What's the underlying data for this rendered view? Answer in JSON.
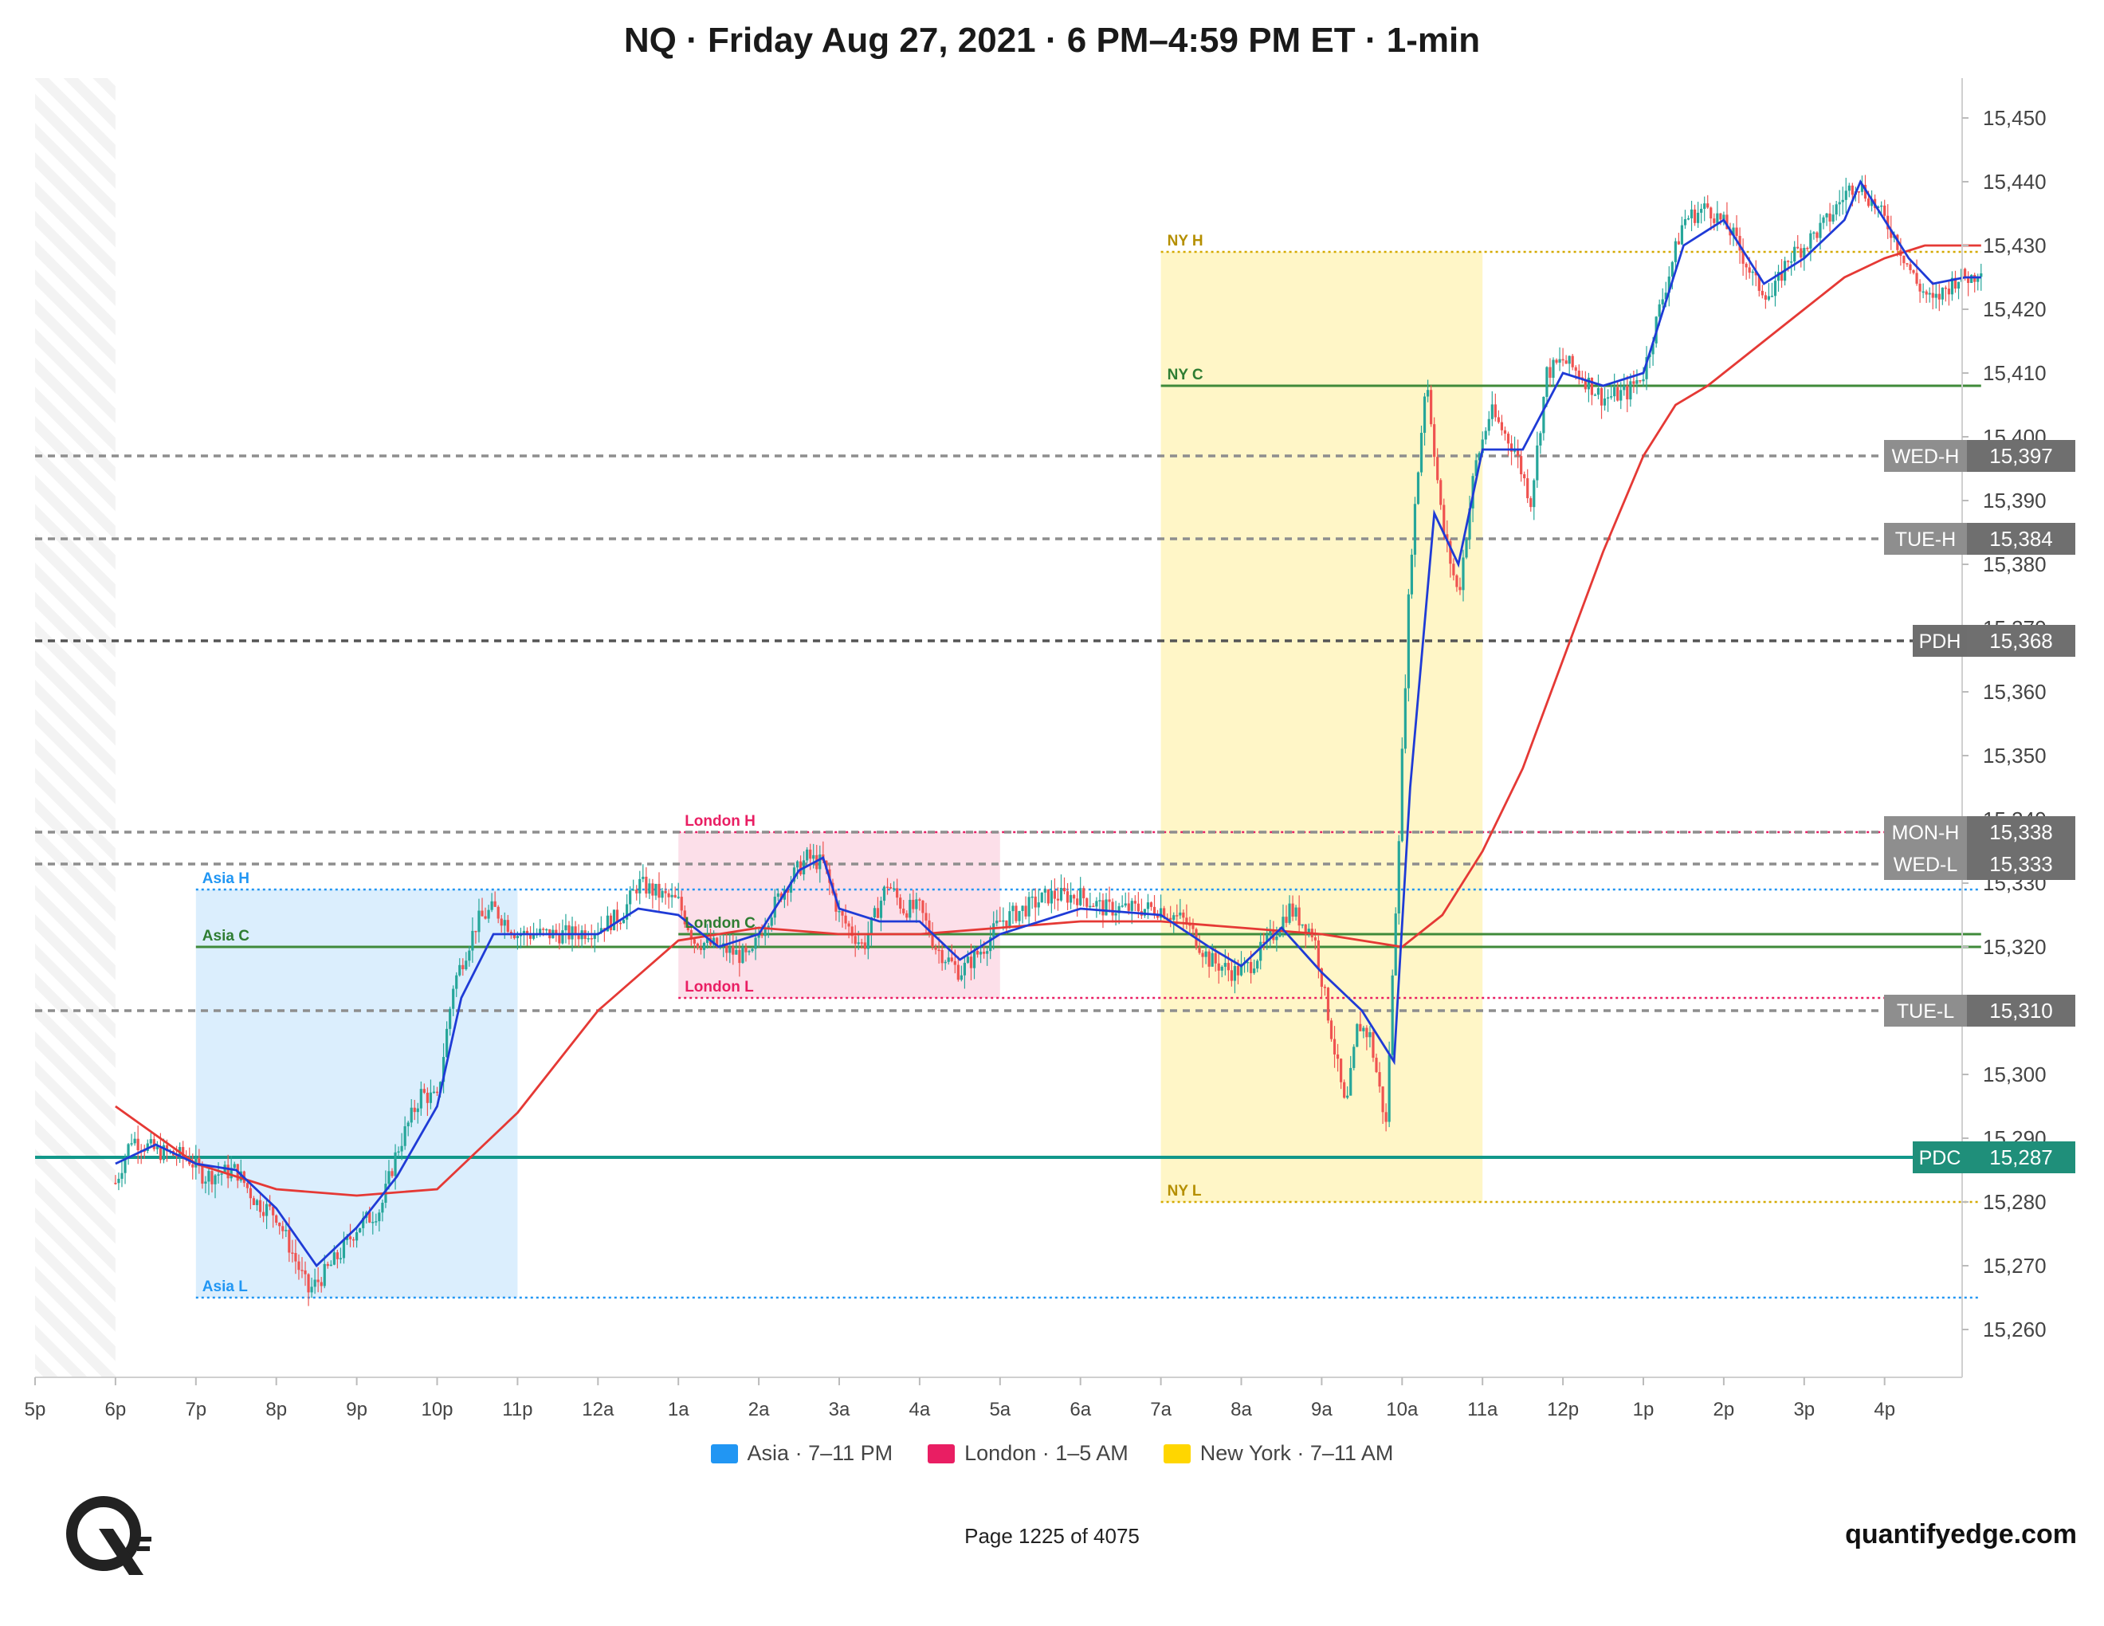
{
  "title": "NQ · Friday Aug 27, 2021 · 6 PM–4:59 PM ET · 1-min",
  "footer": {
    "page": "Page 1225 of 4075",
    "site": "quantifyedge.com"
  },
  "colors": {
    "asia": "#2196f3",
    "london": "#e91e63",
    "newyork": "#ffd600",
    "ema_fast": "#1f3bd6",
    "ema_slow": "#e53935",
    "pdc": "#12988a",
    "level_dash": "#8e8e8e",
    "bull": "#26a69a",
    "bear": "#ef5350"
  },
  "chart_data": {
    "type": "candlestick",
    "instrument": "NQ",
    "timeframe": "1-min",
    "x_ticks": [
      "5p",
      "6p",
      "7p",
      "8p",
      "9p",
      "10p",
      "11p",
      "12a",
      "1a",
      "2a",
      "3a",
      "4a",
      "5a",
      "6a",
      "7a",
      "8a",
      "9a",
      "10a",
      "11a",
      "12p",
      "1p",
      "2p",
      "3p",
      "4p"
    ],
    "y_ticks": [
      15260,
      15270,
      15280,
      15290,
      15300,
      15310,
      15320,
      15330,
      15340,
      15350,
      15360,
      15370,
      15380,
      15390,
      15400,
      15410,
      15420,
      15430,
      15440,
      15450
    ],
    "y_tick_labels": [
      "15,260",
      "15,270",
      "15,280",
      "15,290",
      "15,300",
      "15,310",
      "15,320",
      "15,330",
      "15,340",
      "15,350",
      "15,360",
      "15,370",
      "15,380",
      "15,390",
      "15,400",
      "15,410",
      "15,420",
      "15,430",
      "15,440",
      "15,450"
    ],
    "ylim": [
      15254,
      15455
    ],
    "sessions": [
      {
        "name": "Asia · 7–11 PM",
        "start": 2,
        "end": 6,
        "high": 15329,
        "close": 15320,
        "low": 15265,
        "labels": {
          "high": "Asia H",
          "close": "Asia C",
          "low": "Asia L"
        }
      },
      {
        "name": "London · 1–5 AM",
        "start": 8,
        "end": 12,
        "high": 15338,
        "close": 15322,
        "low": 15312,
        "labels": {
          "high": "London H",
          "close": "London C",
          "low": "London L"
        }
      },
      {
        "name": "New York · 7–11 AM",
        "start": 14,
        "end": 18,
        "high": 15429,
        "close": 15408,
        "low": 15280,
        "labels": {
          "high": "NY H",
          "close": "NY C",
          "low": "NY L"
        }
      }
    ],
    "reference_levels": [
      {
        "label": "WED-H",
        "value": 15397,
        "price_text": "15,397"
      },
      {
        "label": "TUE-H",
        "value": 15384,
        "price_text": "15,384"
      },
      {
        "label": "PDH",
        "value": 15368,
        "price_text": "15,368"
      },
      {
        "label": "MON-H",
        "value": 15338,
        "price_text": "15,338"
      },
      {
        "label": "WED-L",
        "value": 15333,
        "price_text": "15,333"
      },
      {
        "label": "TUE-L",
        "value": 15310,
        "price_text": "15,310"
      },
      {
        "label": "PDC",
        "value": 15287,
        "price_text": "15,287"
      }
    ],
    "price_path": [
      [
        1.0,
        15283
      ],
      [
        1.2,
        15290
      ],
      [
        1.5,
        15288
      ],
      [
        1.9,
        15287
      ],
      [
        2.1,
        15284
      ],
      [
        2.5,
        15285
      ],
      [
        2.75,
        15280
      ],
      [
        3.0,
        15278
      ],
      [
        3.2,
        15272
      ],
      [
        3.4,
        15266
      ],
      [
        3.55,
        15268
      ],
      [
        3.8,
        15272
      ],
      [
        4.0,
        15276
      ],
      [
        4.3,
        15279
      ],
      [
        4.5,
        15288
      ],
      [
        4.8,
        15297
      ],
      [
        5.0,
        15296
      ],
      [
        5.2,
        15314
      ],
      [
        5.5,
        15324
      ],
      [
        5.7,
        15326
      ],
      [
        6.0,
        15322
      ],
      [
        6.3,
        15322
      ],
      [
        6.7,
        15322
      ],
      [
        7.0,
        15323
      ],
      [
        7.3,
        15325
      ],
      [
        7.5,
        15330
      ],
      [
        7.8,
        15328
      ],
      [
        8.0,
        15327
      ],
      [
        8.2,
        15321
      ],
      [
        8.5,
        15320
      ],
      [
        8.9,
        15318
      ],
      [
        9.0,
        15322
      ],
      [
        9.3,
        15329
      ],
      [
        9.6,
        15334
      ],
      [
        9.8,
        15333
      ],
      [
        10.0,
        15325
      ],
      [
        10.3,
        15320
      ],
      [
        10.6,
        15330
      ],
      [
        10.8,
        15326
      ],
      [
        11.0,
        15326
      ],
      [
        11.2,
        15320
      ],
      [
        11.5,
        15316
      ],
      [
        11.8,
        15320
      ],
      [
        12.0,
        15324
      ],
      [
        12.3,
        15326
      ],
      [
        12.6,
        15328
      ],
      [
        13.0,
        15328
      ],
      [
        13.3,
        15326
      ],
      [
        13.7,
        15326
      ],
      [
        14.0,
        15326
      ],
      [
        14.3,
        15324
      ],
      [
        14.6,
        15318
      ],
      [
        14.9,
        15316
      ],
      [
        15.1,
        15317
      ],
      [
        15.4,
        15322
      ],
      [
        15.6,
        15326
      ],
      [
        15.9,
        15322
      ],
      [
        16.1,
        15308
      ],
      [
        16.3,
        15294
      ],
      [
        16.45,
        15308
      ],
      [
        16.6,
        15306
      ],
      [
        16.8,
        15292
      ],
      [
        16.95,
        15335
      ],
      [
        17.1,
        15380
      ],
      [
        17.3,
        15410
      ],
      [
        17.5,
        15386
      ],
      [
        17.7,
        15375
      ],
      [
        17.9,
        15395
      ],
      [
        18.1,
        15404
      ],
      [
        18.4,
        15398
      ],
      [
        18.6,
        15390
      ],
      [
        18.8,
        15410
      ],
      [
        19.0,
        15412
      ],
      [
        19.2,
        15410
      ],
      [
        19.5,
        15406
      ],
      [
        19.8,
        15407
      ],
      [
        20.0,
        15410
      ],
      [
        20.2,
        15420
      ],
      [
        20.5,
        15434
      ],
      [
        20.8,
        15436
      ],
      [
        21.1,
        15432
      ],
      [
        21.4,
        15424
      ],
      [
        21.6,
        15422
      ],
      [
        21.8,
        15428
      ],
      [
        22.0,
        15430
      ],
      [
        22.3,
        15434
      ],
      [
        22.5,
        15438
      ],
      [
        22.65,
        15440
      ],
      [
        22.9,
        15436
      ],
      [
        23.1,
        15432
      ],
      [
        23.4,
        15424
      ],
      [
        23.6,
        15421
      ],
      [
        23.9,
        15425
      ],
      [
        24.1,
        15425
      ],
      [
        24.2,
        15427
      ]
    ],
    "ema_fast_path": [
      [
        1.0,
        15286
      ],
      [
        1.5,
        15289
      ],
      [
        2.0,
        15286
      ],
      [
        2.5,
        15285
      ],
      [
        3.0,
        15279
      ],
      [
        3.5,
        15270
      ],
      [
        4.0,
        15276
      ],
      [
        4.5,
        15284
      ],
      [
        5.0,
        15295
      ],
      [
        5.3,
        15312
      ],
      [
        5.7,
        15322
      ],
      [
        6.0,
        15322
      ],
      [
        7.0,
        15322
      ],
      [
        7.5,
        15326
      ],
      [
        8.0,
        15325
      ],
      [
        8.5,
        15320
      ],
      [
        9.0,
        15322
      ],
      [
        9.5,
        15332
      ],
      [
        9.8,
        15334
      ],
      [
        10.0,
        15326
      ],
      [
        10.5,
        15324
      ],
      [
        11.0,
        15324
      ],
      [
        11.5,
        15318
      ],
      [
        12.0,
        15322
      ],
      [
        13.0,
        15326
      ],
      [
        14.0,
        15325
      ],
      [
        14.6,
        15320
      ],
      [
        15.0,
        15317
      ],
      [
        15.5,
        15323
      ],
      [
        16.0,
        15316
      ],
      [
        16.5,
        15310
      ],
      [
        16.9,
        15302
      ],
      [
        17.1,
        15345
      ],
      [
        17.4,
        15388
      ],
      [
        17.7,
        15380
      ],
      [
        18.0,
        15398
      ],
      [
        18.5,
        15398
      ],
      [
        19.0,
        15410
      ],
      [
        19.5,
        15408
      ],
      [
        20.0,
        15410
      ],
      [
        20.5,
        15430
      ],
      [
        21.0,
        15434
      ],
      [
        21.5,
        15424
      ],
      [
        22.0,
        15428
      ],
      [
        22.5,
        15434
      ],
      [
        22.7,
        15440
      ],
      [
        23.0,
        15434
      ],
      [
        23.3,
        15428
      ],
      [
        23.6,
        15424
      ],
      [
        24.0,
        15425
      ],
      [
        24.2,
        15425
      ]
    ],
    "ema_slow_path": [
      [
        1.0,
        15295
      ],
      [
        2.0,
        15286
      ],
      [
        3.0,
        15282
      ],
      [
        4.0,
        15281
      ],
      [
        5.0,
        15282
      ],
      [
        5.5,
        15288
      ],
      [
        6.0,
        15294
      ],
      [
        7.0,
        15310
      ],
      [
        8.0,
        15321
      ],
      [
        9.0,
        15323
      ],
      [
        10.0,
        15322
      ],
      [
        11.0,
        15322
      ],
      [
        12.0,
        15323
      ],
      [
        13.0,
        15324
      ],
      [
        14.0,
        15324
      ],
      [
        15.0,
        15323
      ],
      [
        16.0,
        15322
      ],
      [
        16.5,
        15321
      ],
      [
        17.0,
        15320
      ],
      [
        17.5,
        15325
      ],
      [
        18.0,
        15335
      ],
      [
        18.5,
        15348
      ],
      [
        19.0,
        15365
      ],
      [
        19.5,
        15382
      ],
      [
        20.0,
        15397
      ],
      [
        20.4,
        15405
      ],
      [
        20.8,
        15408
      ],
      [
        21.2,
        15412
      ],
      [
        21.6,
        15416
      ],
      [
        22.0,
        15420
      ],
      [
        22.5,
        15425
      ],
      [
        23.0,
        15428
      ],
      [
        23.5,
        15430
      ],
      [
        24.2,
        15430
      ]
    ]
  }
}
